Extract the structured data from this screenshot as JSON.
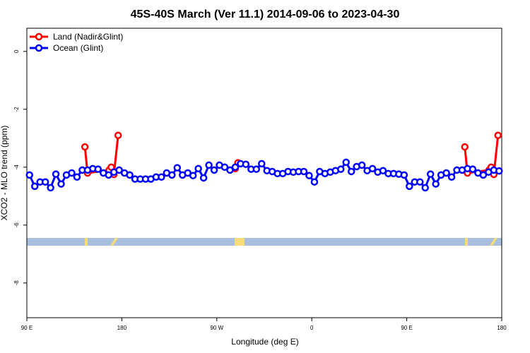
{
  "chart_data": {
    "type": "line",
    "title": "45S-40S March (Ver 11.1)   2014-09-06 to 2023-04-30",
    "xlabel": "Longitude (deg E)",
    "ylabel": "XCO2 - MLO trend (ppm)",
    "xlim": [
      90,
      540
    ],
    "xticks": [
      {
        "value": 90,
        "label": "90 E"
      },
      180,
      {
        "value": 270,
        "label": "90 W"
      },
      {
        "value": 360,
        "label": "0"
      },
      {
        "value": 450,
        "label": "90 E"
      },
      {
        "value": 540,
        "label": "180"
      }
    ],
    "ylim": [
      -9.2,
      0.8
    ],
    "yticks": [
      0,
      -2,
      -4,
      -6,
      -8
    ],
    "legend": "top-left",
    "series": [
      {
        "name": "Land (Nadir&Glint)",
        "color": "#ff0000",
        "x": [
          145,
          147.5,
          168,
          170,
          172.5,
          176.5,
          230,
          287.5,
          290,
          400,
          505,
          507.5,
          528,
          530,
          532.5,
          536.5
        ],
        "values": [
          -3.3,
          -4.2,
          -4.1,
          -4.0,
          -4.25,
          -2.9,
          null,
          -4.05,
          -3.85,
          null,
          -3.3,
          -4.2,
          -4.1,
          -4.0,
          -4.25,
          -2.9
        ]
      },
      {
        "name": "Ocean (Glint)",
        "color": "#0000ff",
        "x": [
          92.5,
          97.5,
          102.5,
          107.5,
          112.5,
          117.5,
          122.5,
          127.5,
          132.5,
          137.5,
          142.5,
          147.5,
          152.5,
          157.5,
          162.5,
          167.5,
          172.5,
          177.5,
          182.5,
          187.5,
          192.5,
          197.5,
          202.5,
          207.5,
          212.5,
          217.5,
          222.5,
          227.5,
          232.5,
          237.5,
          242.5,
          247.5,
          252.5,
          257.5,
          262.5,
          267.5,
          272.5,
          277.5,
          282.5,
          287.5,
          292.5,
          297.5,
          302.5,
          307.5,
          312.5,
          317.5,
          322.5,
          327.5,
          332.5,
          337.5,
          342.5,
          347.5,
          352.5,
          357.5,
          362.5,
          367.5,
          372.5,
          377.5,
          382.5,
          387.5,
          392.5,
          397.5,
          402.5,
          407.5,
          412.5,
          417.5,
          422.5,
          427.5,
          432.5,
          437.5,
          442.5,
          447.5,
          452.5,
          457.5,
          462.5,
          467.5,
          472.5,
          477.5,
          482.5,
          487.5,
          492.5,
          497.5,
          502.5,
          507.5,
          512.5,
          517.5,
          522.5,
          527.5,
          532.5,
          537.5
        ],
        "values": [
          -4.27,
          -4.66,
          -4.51,
          -4.51,
          -4.71,
          -4.24,
          -4.58,
          -4.27,
          -4.2,
          -4.34,
          -4.1,
          -4.1,
          -4.05,
          -4.07,
          -4.2,
          -4.27,
          -4.17,
          -4.1,
          -4.2,
          -4.27,
          -4.41,
          -4.41,
          -4.41,
          -4.41,
          -4.34,
          -4.34,
          -4.2,
          -4.27,
          -4.02,
          -4.27,
          -4.2,
          -4.29,
          -4.05,
          -4.37,
          -3.93,
          -4.1,
          -3.93,
          -4.0,
          -4.1,
          -4.0,
          -3.88,
          -3.9,
          -4.07,
          -4.07,
          -3.88,
          -4.12,
          -4.15,
          -4.22,
          -4.22,
          -4.15,
          -4.17,
          -4.15,
          -4.15,
          -4.29,
          -4.51,
          -4.15,
          -4.22,
          -4.17,
          -4.12,
          -4.07,
          -3.83,
          -4.15,
          -3.98,
          -3.93,
          -4.12,
          -4.05,
          -4.17,
          -4.12,
          -4.22,
          -4.22,
          -4.24,
          -4.27,
          -4.66,
          -4.51,
          -4.51,
          -4.71,
          -4.24,
          -4.58,
          -4.27,
          -4.2,
          -4.34,
          -4.1,
          -4.1,
          -4.05,
          -4.07,
          -4.2,
          -4.27,
          -4.17,
          -4.1,
          -4.13
        ]
      }
    ]
  }
}
